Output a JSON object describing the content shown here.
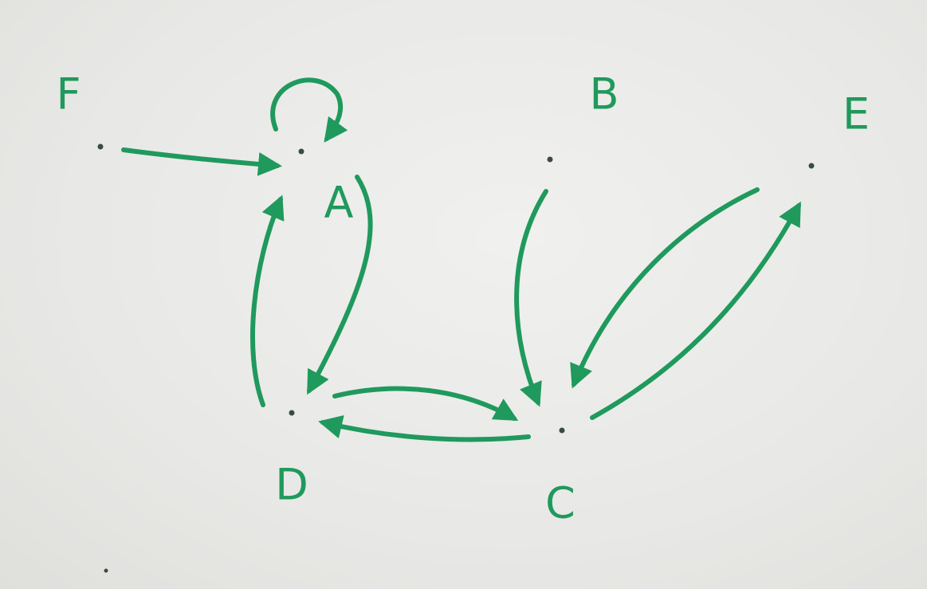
{
  "graph": {
    "ink_color": "#1f9a5c",
    "dot_color": "#3a4a44",
    "nodes": [
      {
        "id": "A",
        "label": "A"
      },
      {
        "id": "B",
        "label": "B"
      },
      {
        "id": "C",
        "label": "C"
      },
      {
        "id": "D",
        "label": "D"
      },
      {
        "id": "E",
        "label": "E"
      },
      {
        "id": "F",
        "label": "F"
      }
    ],
    "edges": [
      {
        "from": "A",
        "to": "A"
      },
      {
        "from": "F",
        "to": "A"
      },
      {
        "from": "A",
        "to": "D"
      },
      {
        "from": "D",
        "to": "A"
      },
      {
        "from": "D",
        "to": "C"
      },
      {
        "from": "C",
        "to": "D"
      },
      {
        "from": "B",
        "to": "C"
      },
      {
        "from": "E",
        "to": "C"
      },
      {
        "from": "C",
        "to": "E"
      }
    ]
  }
}
